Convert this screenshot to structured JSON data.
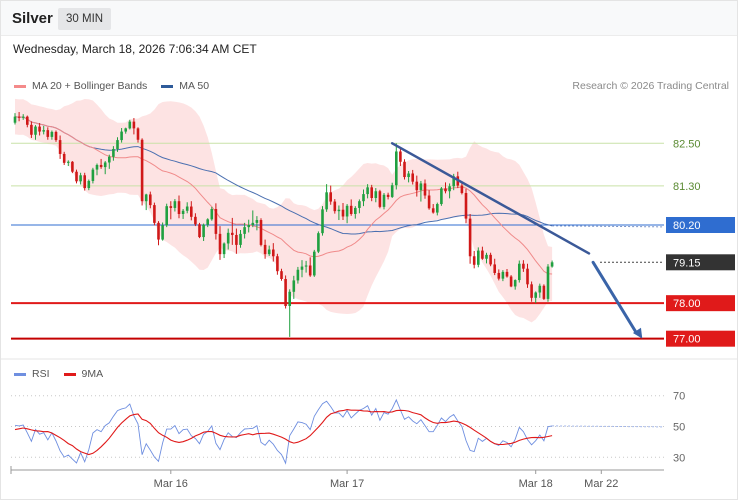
{
  "header": {
    "title": "Silver",
    "timeframe": "30 MIN",
    "datetime": "Wednesday, March 18, 2026 7:06:34 AM CET"
  },
  "legend": {
    "main": [
      {
        "label": "MA 20 + Bollinger Bands",
        "color": "#f48a8a"
      },
      {
        "label": "MA 50",
        "color": "#2e5b9a"
      }
    ],
    "rsi": [
      {
        "label": "RSI",
        "color": "#6f8fe0"
      },
      {
        "label": "9MA",
        "color": "#e01a1a"
      }
    ]
  },
  "credit": "Research © 2026 Trading Central",
  "chart_data": [
    {
      "type": "candlestick",
      "instrument": "Silver",
      "interval": "30 MIN",
      "ylim": [
        76.4,
        84.0
      ],
      "x_labels": [
        {
          "label": "Mar 16",
          "index": 38
        },
        {
          "label": "Mar 17",
          "index": 81
        },
        {
          "label": "Mar 18",
          "index": 127
        },
        {
          "label": "Mar 22",
          "index": 143
        }
      ],
      "levels": [
        {
          "label": "82.50",
          "value": 82.5,
          "role": "resistance",
          "line": "#c9e2a8",
          "text": "#5a8a32",
          "badge": null
        },
        {
          "label": "81.30",
          "value": 81.3,
          "role": "resistance",
          "line": "#c9e2a8",
          "text": "#5a8a32",
          "badge": null
        },
        {
          "label": "80.20",
          "value": 80.2,
          "role": "pivot",
          "line": "#2f6dd0",
          "text": "#ffffff",
          "badge": "#2f6dd0"
        },
        {
          "label": "79.15",
          "value": 79.15,
          "role": "last",
          "line": "#444444",
          "text": "#ffffff",
          "badge": "#333333"
        },
        {
          "label": "78.00",
          "value": 78.0,
          "role": "support",
          "line": "#e01a1a",
          "text": "#ffffff",
          "badge": "#e01a1a"
        },
        {
          "label": "77.00",
          "value": 77.0,
          "role": "support",
          "line": "#c40000",
          "text": "#ffffff",
          "badge": "#e01a1a"
        }
      ],
      "trendline": {
        "from": {
          "index": 92,
          "value": 82.5
        },
        "to": {
          "index": 140,
          "value": 79.4
        },
        "color": "#3b5998"
      },
      "arrow": {
        "from": {
          "index": 141,
          "value": 79.15
        },
        "to": {
          "index": 153,
          "value": 77.0
        },
        "color": "#3a64a8"
      },
      "colors": {
        "up": "#20a040",
        "down": "#d01818",
        "ma20": "#f08a8a",
        "ma50": "#4a6fb0",
        "band": "#fde0e0"
      },
      "candles": [
        [
          83.08,
          83.35,
          83.03,
          83.25
        ],
        [
          83.25,
          83.38,
          83.12,
          83.22
        ],
        [
          83.22,
          83.32,
          83.16,
          83.25
        ],
        [
          83.25,
          83.28,
          82.95,
          83.02
        ],
        [
          83.02,
          83.12,
          82.65,
          82.74
        ],
        [
          82.74,
          83.01,
          82.6,
          82.97
        ],
        [
          82.97,
          83.07,
          82.72,
          82.83
        ],
        [
          82.83,
          82.99,
          82.75,
          82.87
        ],
        [
          82.87,
          82.95,
          82.6,
          82.68
        ],
        [
          82.68,
          82.86,
          82.6,
          82.82
        ],
        [
          82.82,
          82.86,
          82.54,
          82.59
        ],
        [
          82.59,
          82.72,
          82.06,
          82.2
        ],
        [
          82.2,
          82.26,
          81.89,
          81.95
        ],
        [
          81.95,
          82.02,
          81.86,
          81.98
        ],
        [
          81.98,
          82.0,
          81.66,
          81.7
        ],
        [
          81.7,
          81.76,
          81.37,
          81.43
        ],
        [
          81.43,
          81.67,
          81.34,
          81.6
        ],
        [
          81.6,
          81.67,
          81.17,
          81.24
        ],
        [
          81.24,
          81.48,
          81.18,
          81.44
        ],
        [
          81.44,
          81.81,
          81.37,
          81.76
        ],
        [
          81.76,
          81.93,
          81.6,
          81.89
        ],
        [
          81.89,
          82.06,
          81.78,
          81.83
        ],
        [
          81.83,
          82.0,
          81.63,
          81.96
        ],
        [
          81.96,
          82.18,
          81.78,
          82.12
        ],
        [
          82.12,
          82.42,
          82.01,
          82.34
        ],
        [
          82.34,
          82.67,
          82.26,
          82.59
        ],
        [
          82.59,
          82.93,
          82.52,
          82.83
        ],
        [
          82.83,
          82.94,
          82.77,
          82.92
        ],
        [
          82.92,
          83.16,
          82.89,
          83.11
        ],
        [
          83.11,
          83.21,
          82.75,
          82.92
        ],
        [
          82.92,
          82.95,
          82.52,
          82.6
        ],
        [
          82.6,
          82.64,
          80.75,
          80.87
        ],
        [
          80.87,
          81.08,
          80.62,
          81.06
        ],
        [
          81.06,
          81.14,
          80.67,
          80.76
        ],
        [
          80.76,
          80.83,
          80.19,
          80.26
        ],
        [
          80.26,
          80.31,
          79.63,
          79.79
        ],
        [
          79.79,
          80.27,
          79.76,
          80.19
        ],
        [
          80.19,
          80.8,
          80.14,
          80.73
        ],
        [
          80.73,
          80.87,
          80.36,
          80.68
        ],
        [
          80.68,
          80.93,
          80.58,
          80.87
        ],
        [
          80.87,
          81.03,
          80.39,
          80.51
        ],
        [
          80.51,
          80.65,
          80.37,
          80.6
        ],
        [
          80.6,
          80.84,
          80.53,
          80.72
        ],
        [
          80.72,
          80.87,
          80.33,
          80.43
        ],
        [
          80.43,
          80.53,
          80.17,
          80.22
        ],
        [
          80.22,
          80.26,
          79.83,
          79.86
        ],
        [
          79.86,
          80.24,
          79.75,
          80.21
        ],
        [
          80.21,
          80.39,
          80.14,
          80.36
        ],
        [
          80.36,
          80.71,
          80.32,
          80.65
        ],
        [
          80.65,
          80.81,
          79.79,
          79.95
        ],
        [
          79.95,
          80.17,
          79.22,
          79.38
        ],
        [
          79.38,
          79.71,
          79.27,
          79.68
        ],
        [
          79.68,
          80.1,
          79.51,
          79.98
        ],
        [
          79.98,
          80.4,
          79.64,
          79.92
        ],
        [
          79.92,
          80.1,
          79.39,
          79.64
        ],
        [
          79.64,
          80.06,
          79.56,
          79.95
        ],
        [
          79.95,
          80.26,
          79.82,
          80.14
        ],
        [
          80.14,
          80.35,
          79.99,
          80.2
        ],
        [
          80.2,
          80.61,
          80.14,
          80.26
        ],
        [
          80.26,
          80.45,
          80.05,
          80.34
        ],
        [
          80.34,
          80.39,
          79.6,
          79.64
        ],
        [
          79.64,
          79.79,
          79.25,
          79.38
        ],
        [
          79.38,
          79.62,
          79.33,
          79.51
        ],
        [
          79.51,
          79.69,
          79.17,
          79.32
        ],
        [
          79.32,
          79.39,
          78.8,
          78.9
        ],
        [
          78.9,
          78.97,
          78.63,
          78.68
        ],
        [
          78.68,
          78.78,
          77.85,
          77.92
        ],
        [
          77.92,
          78.39,
          77.05,
          78.32
        ],
        [
          78.32,
          78.77,
          78.12,
          78.64
        ],
        [
          78.64,
          79.02,
          78.55,
          78.94
        ],
        [
          78.94,
          79.21,
          78.73,
          79.03
        ],
        [
          79.03,
          79.19,
          78.86,
          79.06
        ],
        [
          79.06,
          79.29,
          78.74,
          78.78
        ],
        [
          78.78,
          79.5,
          78.74,
          79.45
        ],
        [
          79.45,
          80.02,
          79.41,
          79.97
        ],
        [
          79.97,
          80.73,
          79.9,
          80.64
        ],
        [
          80.64,
          81.35,
          80.57,
          81.12
        ],
        [
          81.12,
          81.31,
          80.77,
          80.86
        ],
        [
          80.86,
          80.93,
          80.52,
          80.59
        ],
        [
          80.59,
          80.75,
          80.34,
          80.63
        ],
        [
          80.63,
          80.82,
          80.34,
          80.44
        ],
        [
          80.44,
          80.79,
          80.25,
          80.74
        ],
        [
          80.74,
          80.92,
          80.46,
          80.51
        ],
        [
          80.51,
          80.73,
          80.38,
          80.68
        ],
        [
          80.68,
          80.92,
          80.53,
          80.87
        ],
        [
          80.87,
          81.2,
          80.73,
          81.07
        ],
        [
          81.07,
          81.35,
          80.95,
          81.26
        ],
        [
          81.26,
          81.33,
          80.87,
          80.96
        ],
        [
          80.96,
          81.24,
          80.84,
          81.15
        ],
        [
          81.15,
          81.19,
          80.67,
          80.71
        ],
        [
          80.71,
          81.1,
          80.64,
          81.05
        ],
        [
          81.05,
          81.11,
          80.92,
          80.99
        ],
        [
          80.99,
          81.39,
          80.96,
          81.32
        ],
        [
          81.32,
          82.5,
          81.2,
          82.27
        ],
        [
          82.27,
          82.37,
          81.86,
          81.98
        ],
        [
          81.98,
          82.05,
          81.48,
          81.55
        ],
        [
          81.55,
          81.72,
          81.4,
          81.65
        ],
        [
          81.65,
          81.75,
          81.34,
          81.42
        ],
        [
          81.42,
          81.59,
          81.0,
          81.18
        ],
        [
          81.18,
          81.44,
          80.86,
          81.37
        ],
        [
          81.37,
          81.48,
          80.94,
          81.03
        ],
        [
          81.03,
          81.18,
          80.63,
          80.67
        ],
        [
          80.67,
          80.79,
          80.52,
          80.55
        ],
        [
          80.55,
          80.83,
          80.47,
          80.79
        ],
        [
          80.79,
          81.27,
          80.74,
          81.23
        ],
        [
          81.23,
          81.4,
          81.09,
          81.15
        ],
        [
          81.15,
          81.37,
          80.95,
          81.29
        ],
        [
          81.29,
          81.64,
          81.18,
          81.57
        ],
        [
          81.57,
          81.7,
          81.24,
          81.31
        ],
        [
          81.31,
          81.43,
          81.06,
          81.1
        ],
        [
          81.1,
          81.22,
          80.25,
          80.38
        ],
        [
          80.38,
          80.51,
          79.11,
          79.32
        ],
        [
          79.32,
          79.47,
          78.98,
          79.08
        ],
        [
          79.08,
          79.57,
          79.01,
          79.48
        ],
        [
          79.48,
          79.59,
          79.22,
          79.25
        ],
        [
          79.25,
          79.42,
          79.12,
          79.36
        ],
        [
          79.36,
          79.42,
          79.04,
          79.09
        ],
        [
          79.09,
          79.25,
          78.79,
          78.85
        ],
        [
          78.85,
          78.95,
          78.64,
          78.69
        ],
        [
          78.69,
          78.93,
          78.62,
          78.88
        ],
        [
          78.88,
          78.96,
          78.72,
          78.75
        ],
        [
          78.75,
          78.79,
          78.45,
          78.47
        ],
        [
          78.47,
          78.67,
          78.38,
          78.65
        ],
        [
          78.65,
          79.2,
          78.58,
          79.11
        ],
        [
          79.11,
          79.21,
          78.88,
          78.97
        ],
        [
          78.97,
          79.11,
          78.43,
          78.53
        ],
        [
          78.53,
          78.61,
          78.04,
          78.15
        ],
        [
          78.15,
          78.33,
          78.0,
          78.3
        ],
        [
          78.3,
          78.55,
          78.15,
          78.49
        ],
        [
          78.49,
          78.53,
          78.09,
          78.12
        ],
        [
          78.12,
          79.1,
          78.04,
          79.03
        ],
        [
          79.03,
          79.2,
          79.0,
          79.15
        ]
      ]
    },
    {
      "type": "line",
      "name": "RSI",
      "ylim": [
        25,
        75
      ],
      "ticks": [
        70,
        50,
        30
      ],
      "series": [
        {
          "name": "RSI",
          "color": "#6f8fe0",
          "values": [
            50.8,
            50.4,
            51.0,
            45.9,
            40.4,
            48.1,
            45.0,
            46.0,
            41.3,
            45.9,
            40.6,
            34.2,
            30.1,
            31.5,
            28.8,
            26.3,
            33.0,
            27.1,
            35.0,
            45.8,
            48.0,
            46.6,
            50.6,
            52.4,
            56.6,
            60.3,
            61.4,
            62.1,
            64.6,
            56.9,
            51.7,
            31.7,
            38.8,
            34.7,
            30.2,
            27.4,
            39.3,
            48.3,
            48.3,
            50.6,
            45.4,
            47.9,
            48.3,
            44.0,
            42.2,
            38.8,
            45.0,
            46.8,
            50.4,
            39.1,
            35.0,
            41.6,
            45.9,
            43.5,
            42.8,
            46.0,
            48.4,
            48.6,
            48.8,
            50.5,
            39.7,
            37.8,
            41.1,
            38.5,
            34.4,
            31.8,
            26.2,
            44.0,
            48.4,
            53.0,
            52.5,
            51.5,
            47.9,
            56.6,
            61.0,
            64.8,
            66.4,
            62.9,
            58.8,
            58.8,
            56.1,
            60.4,
            55.6,
            58.1,
            60.5,
            61.7,
            63.5,
            57.4,
            61.7,
            54.0,
            59.0,
            58.0,
            61.6,
            67.3,
            60.7,
            54.7,
            56.3,
            53.6,
            51.8,
            54.4,
            50.6,
            46.6,
            46.6,
            50.8,
            55.5,
            53.2,
            56.1,
            57.8,
            53.6,
            50.0,
            40.9,
            34.5,
            33.7,
            42.4,
            40.3,
            42.3,
            40.3,
            38.8,
            37.7,
            40.7,
            39.6,
            36.8,
            41.7,
            49.4,
            46.6,
            41.5,
            38.1,
            40.8,
            44.5,
            40.7,
            49.9,
            50.4
          ]
        },
        {
          "name": "9MA",
          "color": "#e01a1a",
          "values": [
            48.0,
            48.5,
            49.0,
            48.5,
            47.8,
            47.2,
            47.0,
            46.6,
            46.7,
            45.8,
            44.2,
            42.7,
            41.0,
            38.9,
            37.6,
            35.4,
            33.7,
            32.7,
            31.8,
            32.6,
            34.5,
            36.8,
            39.5,
            42.4,
            45.9,
            49.4,
            52.3,
            54.7,
            56.9,
            57.7,
            58.1,
            54.7,
            53.8,
            52.0,
            48.8,
            46.0,
            44.3,
            43.0,
            41.2,
            40.2,
            39.7,
            40.1,
            41.1,
            42.3,
            43.9,
            45.0,
            46.3,
            46.7,
            46.7,
            45.6,
            44.3,
            43.6,
            43.3,
            43.2,
            43.3,
            44.3,
            44.8,
            45.3,
            44.6,
            45.3,
            45.5,
            45.6,
            45.7,
            45.0,
            44.1,
            43.1,
            41.8,
            40.1,
            39.2,
            39.8,
            40.9,
            42.1,
            44.1,
            46.8,
            49.6,
            52.6,
            56.0,
            58.2,
            59.0,
            60.0,
            60.3,
            61.0,
            60.6,
            60.6,
            60.5,
            60.1,
            60.0,
            59.5,
            59.7,
            59.6,
            59.7,
            59.2,
            59.5,
            60.3,
            60.5,
            60.4,
            60.0,
            59.0,
            58.4,
            57.6,
            55.6,
            53.9,
            52.6,
            52.1,
            52.6,
            52.5,
            53.0,
            53.5,
            53.1,
            52.2,
            51.0,
            49.4,
            47.6,
            45.9,
            44.2,
            42.4,
            40.3,
            38.8,
            38.3,
            38.3,
            38.7,
            39.0,
            39.8,
            41.0,
            41.8,
            42.4,
            42.8,
            42.9,
            42.7,
            43.0,
            43.5,
            44.1
          ]
        }
      ]
    }
  ]
}
